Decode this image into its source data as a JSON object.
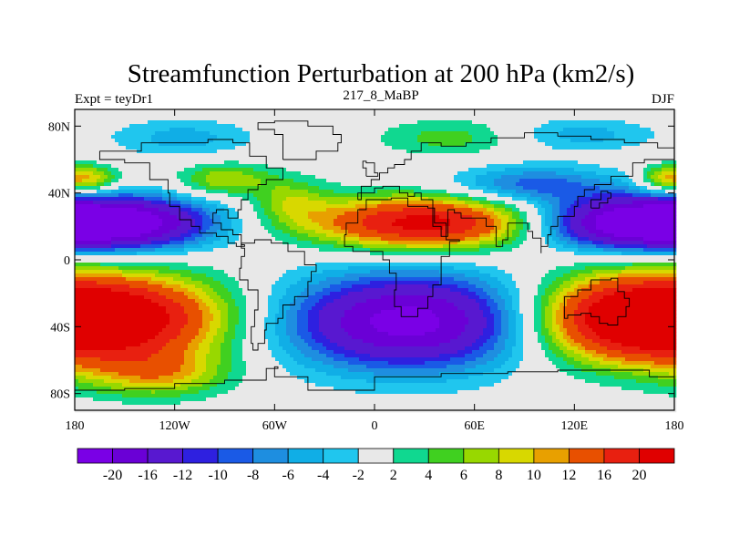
{
  "chart_data": {
    "type": "heatmap",
    "title": "Streamfunction Perturbation at 200 hPa (km2/s)",
    "left_label": "Expt = teyDr1",
    "center_label": "217_8_MaBP",
    "right_label": "DJF",
    "x_ticks": [
      "180",
      "120W",
      "60W",
      "0",
      "60E",
      "120E",
      "180"
    ],
    "x_tick_values": [
      -180,
      -120,
      -60,
      0,
      60,
      120,
      180
    ],
    "y_ticks": [
      "80N",
      "40N",
      "0",
      "40S",
      "80S"
    ],
    "y_tick_values": [
      80,
      40,
      0,
      -40,
      -80
    ],
    "xlim": [
      -180,
      180
    ],
    "ylim": [
      -90,
      90
    ],
    "colorbar_levels": [
      -20,
      -16,
      -12,
      -10,
      -8,
      -6,
      -4,
      -2,
      2,
      4,
      6,
      8,
      10,
      12,
      16,
      20
    ],
    "colorbar_labels": [
      "-20",
      "-16",
      "-12",
      "-10",
      "-8",
      "-6",
      "-4",
      "-2",
      "2",
      "4",
      "6",
      "8",
      "10",
      "12",
      "16",
      "20"
    ],
    "colorbar_colors": [
      "#7a00e6",
      "#6a00d6",
      "#5818d0",
      "#2e20e0",
      "#1a5ae6",
      "#1e8ee0",
      "#10aee6",
      "#20c6ee",
      "#e8e8e8",
      "#10d890",
      "#40d020",
      "#98d800",
      "#d8d800",
      "#e8a000",
      "#e85000",
      "#e82010",
      "#e00000"
    ],
    "fields": [
      {
        "lon": -150,
        "lat": 22,
        "value": -22,
        "sx": 38,
        "sy": 11
      },
      {
        "lon": 150,
        "lat": 22,
        "value": -22,
        "sx": 38,
        "sy": 11
      },
      {
        "lon": 30,
        "lat": 22,
        "value": 22,
        "sx": 48,
        "sy": 11
      },
      {
        "lon": 20,
        "lat": -37,
        "value": -22,
        "sx": 52,
        "sy": 20
      },
      {
        "lon": -150,
        "lat": -35,
        "value": 22,
        "sx": 45,
        "sy": 18
      },
      {
        "lon": 150,
        "lat": -35,
        "value": 22,
        "sx": 40,
        "sy": 18
      },
      {
        "lon": -130,
        "lat": -68,
        "value": 9,
        "sx": 30,
        "sy": 10
      },
      {
        "lon": -90,
        "lat": 48,
        "value": 8,
        "sx": 20,
        "sy": 7
      },
      {
        "lon": -170,
        "lat": 48,
        "value": 10,
        "sx": 12,
        "sy": 6
      },
      {
        "lon": 172,
        "lat": 48,
        "value": 8,
        "sx": 10,
        "sy": 6
      },
      {
        "lon": 45,
        "lat": 73,
        "value": 5,
        "sx": 30,
        "sy": 8
      },
      {
        "lon": -115,
        "lat": 73,
        "value": -5,
        "sx": 30,
        "sy": 8
      },
      {
        "lon": 95,
        "lat": 45,
        "value": -9,
        "sx": 35,
        "sy": 8
      },
      {
        "lon": 125,
        "lat": 75,
        "value": -5,
        "sx": 30,
        "sy": 7
      },
      {
        "lon": -50,
        "lat": 35,
        "value": 6,
        "sx": 16,
        "sy": 10
      }
    ]
  }
}
